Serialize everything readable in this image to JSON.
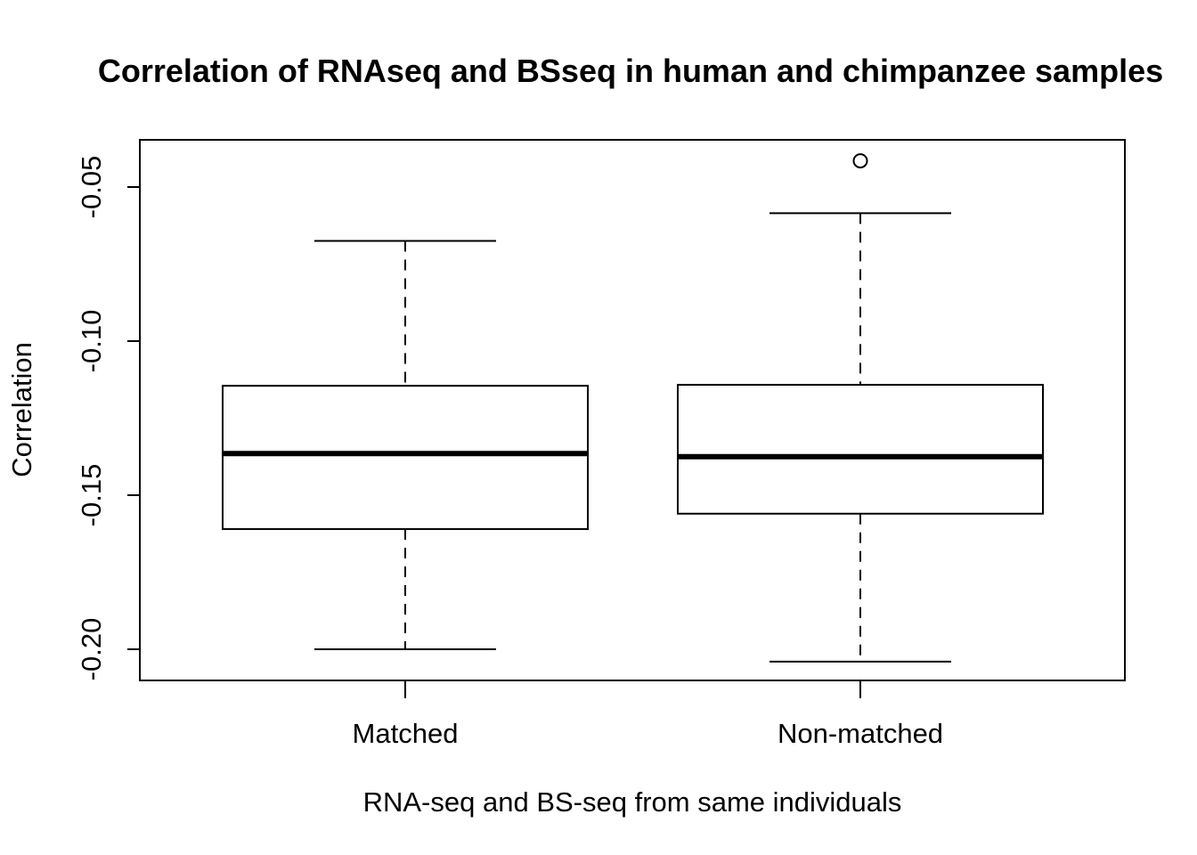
{
  "chart_data": {
    "type": "boxplot",
    "title": "Correlation of RNAseq and BSseq in human and chimpanzee samples",
    "xlabel": "RNA-seq and BS-seq from same individuals",
    "ylabel": "Correlation",
    "ylim": [
      -0.21,
      -0.035
    ],
    "y_ticks": [
      -0.2,
      -0.15,
      -0.1,
      -0.05
    ],
    "y_tick_labels": [
      "-0.20",
      "-0.15",
      "-0.10",
      "-0.05"
    ],
    "categories": [
      "Matched",
      "Non-matched"
    ],
    "boxes": [
      {
        "category": "Matched",
        "whisker_low": -0.2,
        "q1": -0.161,
        "median": -0.1365,
        "q3": -0.1145,
        "whisker_high": -0.0675,
        "outliers": []
      },
      {
        "category": "Non-matched",
        "whisker_low": -0.204,
        "q1": -0.156,
        "median": -0.1375,
        "q3": -0.1142,
        "whisker_high": -0.0585,
        "outliers": [
          -0.0415
        ]
      }
    ],
    "grid": false,
    "legend": "none"
  }
}
